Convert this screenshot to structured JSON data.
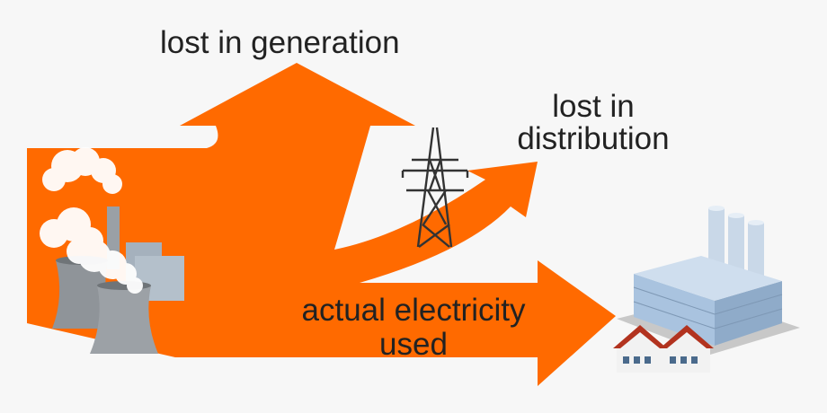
{
  "labels": {
    "lost_generation": "lost in generation",
    "lost_distribution_line1": "lost in",
    "lost_distribution_line2": "distribution",
    "used_line1": "actual electricity",
    "used_line2": "used"
  },
  "colors": {
    "flow": "#ff6a00",
    "background": "#f7f7f7",
    "text": "#222222"
  },
  "icons": [
    "power-plant-icon",
    "pylon-icon",
    "factory-icon",
    "house-icon"
  ]
}
